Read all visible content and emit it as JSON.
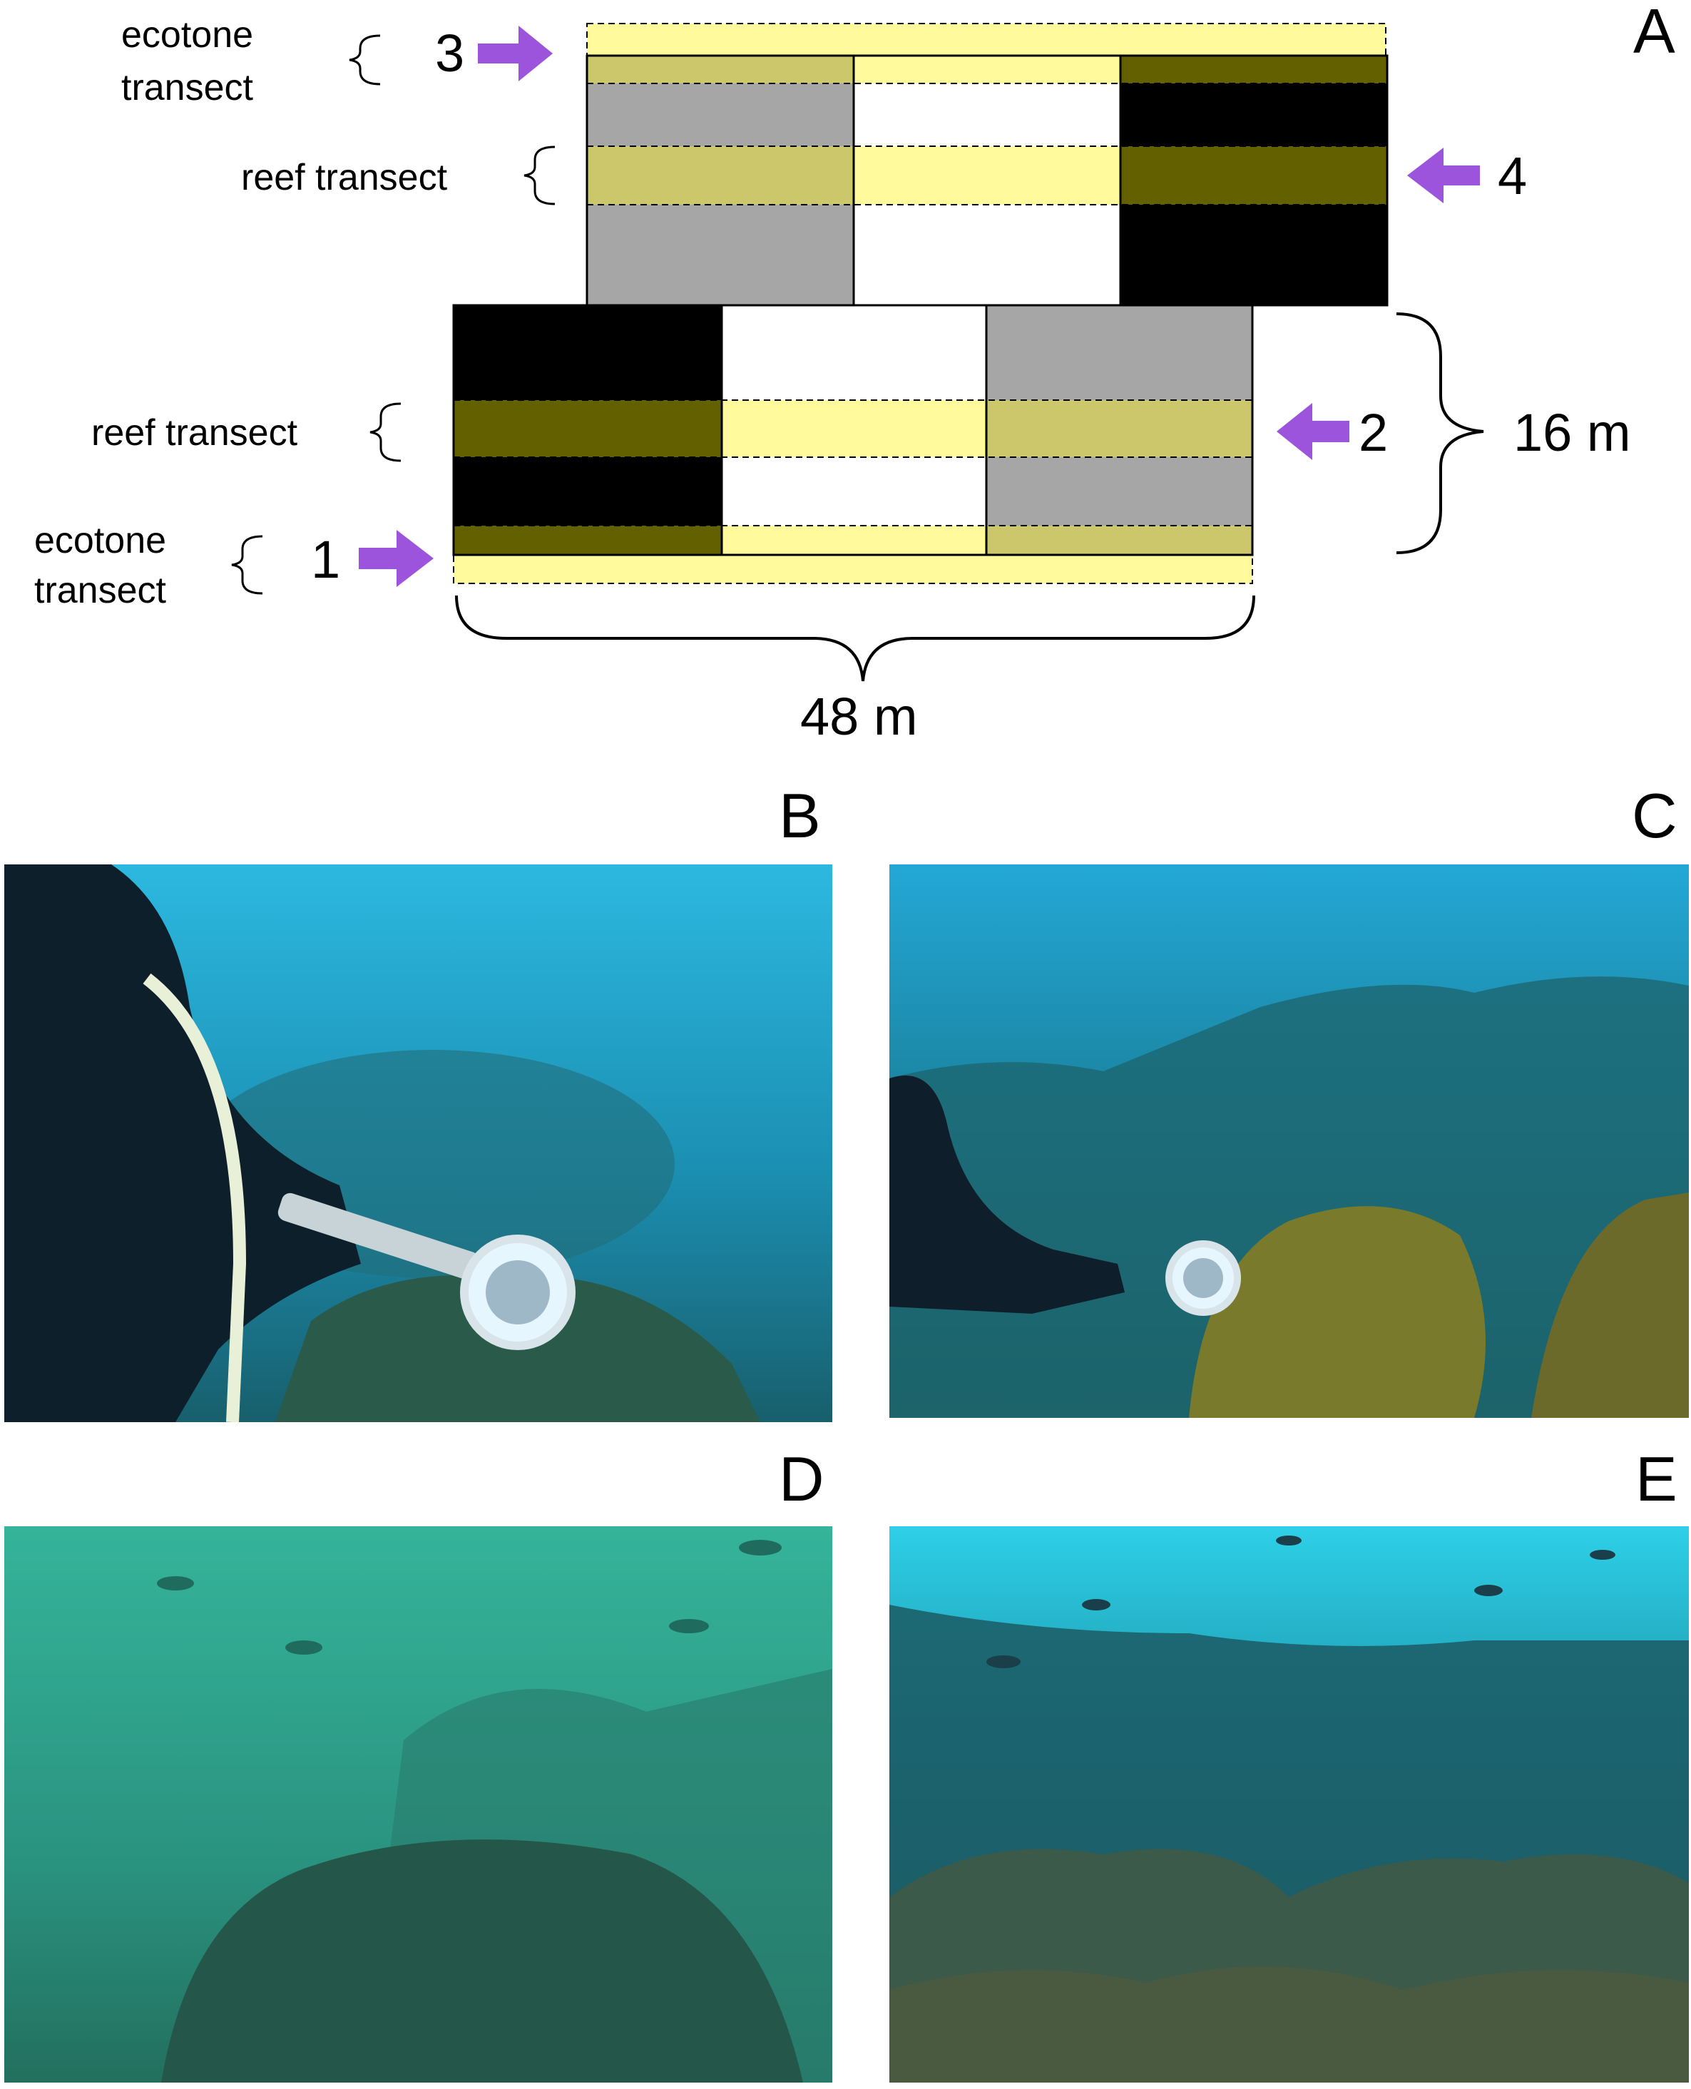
{
  "panel_a": {
    "letter": "A",
    "labels": {
      "ecotone_top_line1": "ecotone",
      "ecotone_top_line2": "transect",
      "reef_top": "reef transect",
      "reef_bottom": "reef transect",
      "ecotone_bottom_line1": "ecotone",
      "ecotone_bottom_line2": "transect"
    },
    "arrow_numbers": {
      "n1": "1",
      "n2": "2",
      "n3": "3",
      "n4": "4"
    },
    "dimensions": {
      "height": "16 m",
      "width": "48 m"
    }
  },
  "panel_letters": {
    "b": "B",
    "c": "C",
    "d": "D",
    "e": "E"
  },
  "colors": {
    "arrow": "#9d54dc",
    "transect_light": "#fffb9c",
    "transect_mid": "#ccc76a",
    "transect_dark": "#636000",
    "grey_block": "#a6a6a6",
    "black_block": "#000000",
    "white_block": "#ffffff"
  }
}
